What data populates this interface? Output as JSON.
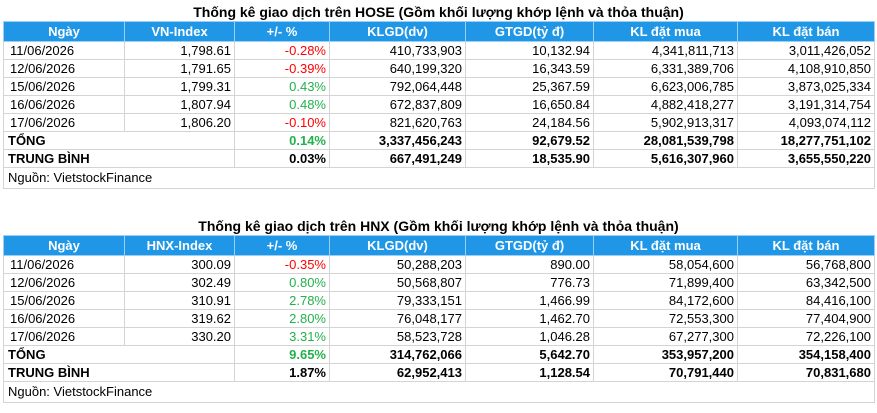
{
  "hose": {
    "title": "Thống kê giao dịch trên HOSE (Gồm khối lượng khớp lệnh và thỏa thuận)",
    "headers": [
      "Ngày",
      "VN-Index",
      "+/- %",
      "KLGD(dv)",
      "GTGD(tỷ đ)",
      "KL đặt mua",
      "KL đặt bán"
    ],
    "rows": [
      {
        "date": "11/06/2026",
        "index": "1,798.61",
        "change": "-0.28%",
        "klgd": "410,733,903",
        "gtgd": "10,132.94",
        "kl_mua": "4,341,811,713",
        "kl_ban": "3,011,426,052"
      },
      {
        "date": "12/06/2026",
        "index": "1,791.65",
        "change": "-0.39%",
        "klgd": "640,199,320",
        "gtgd": "16,343.59",
        "kl_mua": "6,331,389,706",
        "kl_ban": "4,108,910,850"
      },
      {
        "date": "15/06/2026",
        "index": "1,799.31",
        "change": "0.43%",
        "klgd": "792,064,448",
        "gtgd": "25,367.59",
        "kl_mua": "6,623,006,785",
        "kl_ban": "3,873,025,334"
      },
      {
        "date": "16/06/2026",
        "index": "1,807.94",
        "change": "0.48%",
        "klgd": "672,837,809",
        "gtgd": "16,650.84",
        "kl_mua": "4,882,418,277",
        "kl_ban": "3,191,314,754"
      },
      {
        "date": "17/06/2026",
        "index": "1,806.20",
        "change": "-0.10%",
        "klgd": "821,620,763",
        "gtgd": "24,184.56",
        "kl_mua": "5,902,913,317",
        "kl_ban": "4,093,074,112"
      }
    ],
    "total": {
      "label": "TỔNG",
      "change": "0.14%",
      "klgd": "3,337,456,243",
      "gtgd": "92,679.52",
      "kl_mua": "28,081,539,798",
      "kl_ban": "18,277,751,102"
    },
    "avg": {
      "label": "TRUNG BÌNH",
      "change": "0.03%",
      "klgd": "667,491,249",
      "gtgd": "18,535.90",
      "kl_mua": "5,616,307,960",
      "kl_ban": "3,655,550,220"
    },
    "source": "Nguồn: VietstockFinance"
  },
  "hnx": {
    "title": "Thống kê giao dịch trên HNX (Gồm khối lượng khớp lệnh và thỏa thuận)",
    "headers": [
      "Ngày",
      "HNX-Index",
      "+/- %",
      "KLGD(dv)",
      "GTGD(tỷ đ)",
      "KL đặt mua",
      "KL đặt bán"
    ],
    "rows": [
      {
        "date": "11/06/2026",
        "index": "300.09",
        "change": "-0.35%",
        "klgd": "50,288,203",
        "gtgd": "890.00",
        "kl_mua": "58,054,600",
        "kl_ban": "56,768,800"
      },
      {
        "date": "12/06/2026",
        "index": "302.49",
        "change": "0.80%",
        "klgd": "50,568,807",
        "gtgd": "776.73",
        "kl_mua": "71,899,400",
        "kl_ban": "63,342,500"
      },
      {
        "date": "15/06/2026",
        "index": "310.91",
        "change": "2.78%",
        "klgd": "79,333,151",
        "gtgd": "1,466.99",
        "kl_mua": "84,172,600",
        "kl_ban": "84,416,100"
      },
      {
        "date": "16/06/2026",
        "index": "319.62",
        "change": "2.80%",
        "klgd": "76,048,177",
        "gtgd": "1,462.70",
        "kl_mua": "72,553,300",
        "kl_ban": "77,404,900"
      },
      {
        "date": "17/06/2026",
        "index": "330.20",
        "change": "3.31%",
        "klgd": "58,523,728",
        "gtgd": "1,046.28",
        "kl_mua": "67,277,300",
        "kl_ban": "72,226,100"
      }
    ],
    "total": {
      "label": "TỔNG",
      "change": "9.65%",
      "klgd": "314,762,066",
      "gtgd": "5,642.70",
      "kl_mua": "353,957,200",
      "kl_ban": "354,158,400"
    },
    "avg": {
      "label": "TRUNG BÌNH",
      "change": "1.87%",
      "klgd": "62,952,413",
      "gtgd": "1,128.54",
      "kl_mua": "70,791,440",
      "kl_ban": "70,831,680"
    },
    "source": "Nguồn: VietstockFinance"
  },
  "colors": {
    "header_bg": "#1f97e6",
    "negative": "#ff0000",
    "positive": "#22b14c",
    "total_positive": "#22b14c"
  }
}
